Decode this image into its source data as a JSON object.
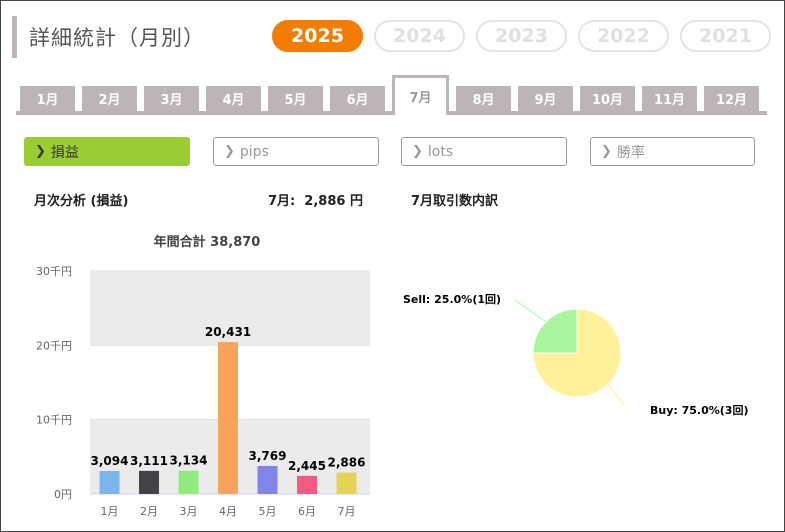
{
  "page": {
    "title": "詳細統計（月別）"
  },
  "years": [
    "2025",
    "2024",
    "2023",
    "2022",
    "2021"
  ],
  "active_year": "2025",
  "months": [
    "1月",
    "2月",
    "3月",
    "4月",
    "5月",
    "6月",
    "7月",
    "8月",
    "9月",
    "10月",
    "11月",
    "12月"
  ],
  "active_month": "7月",
  "metrics": [
    {
      "label": "損益",
      "active": true
    },
    {
      "label": "pips",
      "active": false
    },
    {
      "label": "lots",
      "active": false
    },
    {
      "label": "勝率",
      "active": false
    }
  ],
  "section": {
    "monthly_title": "月次分析 (損益)",
    "monthly_value": "7月:  2,886 円",
    "trades_title": "7月取引数内訳"
  },
  "colors": {
    "accent": "#f47c00",
    "active_metric": "#9acd32",
    "tab": "#bdb5b5"
  },
  "chart_data": [
    {
      "type": "bar",
      "title": "年間合計 38,870",
      "categories": [
        "1月",
        "2月",
        "3月",
        "4月",
        "5月",
        "6月",
        "7月"
      ],
      "values": [
        3094,
        3111,
        3134,
        20431,
        3769,
        2445,
        2886
      ],
      "value_labels": [
        "3,094",
        "3,111",
        "3,134",
        "20,431",
        "3,769",
        "2,445",
        "2,886"
      ],
      "colors": [
        "#7cb5ec",
        "#434348",
        "#90ed7d",
        "#f7a35c",
        "#8085e9",
        "#f15c80",
        "#e4d354"
      ],
      "ylim": [
        0,
        30000
      ],
      "yticks": [
        0,
        10000,
        20000,
        30000
      ],
      "ytick_labels": [
        "0円",
        "10千円",
        "20千円",
        "30千円"
      ],
      "grid": true
    },
    {
      "type": "pie",
      "slices": [
        {
          "label": "Buy: 75.0%(3回)",
          "value": 75.0,
          "color": "#fff099"
        },
        {
          "label": "Sell: 25.0%(1回)",
          "value": 25.0,
          "color": "#aaf5a0"
        }
      ]
    }
  ]
}
